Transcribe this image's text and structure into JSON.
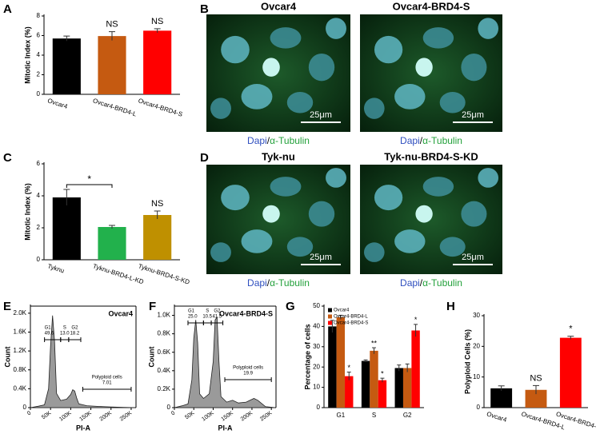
{
  "chart_data": [
    {
      "panel": "A",
      "type": "bar",
      "y_label": "Mitotic Index (%)",
      "categories": [
        "Ovcar4",
        "Ovcar4-BRD4-L",
        "Ovcar4-BRD4-S"
      ],
      "values": [
        5.7,
        5.95,
        6.5
      ],
      "errors": [
        0.25,
        0.45,
        0.2
      ],
      "colors": [
        "#000000",
        "#c55a11",
        "#ff0000"
      ],
      "bar_labels": [
        null,
        "NS",
        "NS"
      ],
      "ylim": [
        0,
        8
      ],
      "yticks": [
        0,
        2,
        4,
        6,
        8
      ]
    },
    {
      "panel": "C",
      "type": "bar",
      "y_label": "Mitotic Index (%)",
      "categories": [
        "Tyknu",
        "Tyknu-BRD4-L-KD",
        "Tyknu-BRD4-S-KD"
      ],
      "values": [
        3.9,
        2.05,
        2.8
      ],
      "errors": [
        0.5,
        0.1,
        0.25
      ],
      "colors": [
        "#000000",
        "#22b14c",
        "#bf9000"
      ],
      "bar_labels": [
        null,
        null,
        "NS"
      ],
      "bracket_label": "*",
      "ylim": [
        0,
        6
      ],
      "yticks": [
        0,
        2,
        4,
        6
      ]
    },
    {
      "panel": "E",
      "type": "area",
      "sample": "Ovcar4",
      "x_label": "PI-A",
      "y_label": "Count",
      "x": [
        0,
        20000,
        35000,
        45000,
        50000,
        55000,
        60000,
        65000,
        75000,
        90000,
        100000,
        105000,
        110000,
        115000,
        120000,
        140000,
        170000,
        200000,
        230000,
        260000
      ],
      "values": [
        0,
        30,
        60,
        400,
        1300,
        1950,
        1400,
        300,
        150,
        180,
        280,
        380,
        350,
        200,
        80,
        40,
        25,
        15,
        5,
        0
      ],
      "gates": [
        {
          "name": "G1",
          "percent": 49.6,
          "range": [
            35000,
            75000
          ]
        },
        {
          "name": "S",
          "percent": {
            "value": 13,
            "label": "13.0"
          },
          "range": [
            75000,
            95000
          ]
        },
        {
          "name": "G2",
          "percent": 18.2,
          "range": [
            95000,
            125000
          ]
        },
        {
          "name": "Polyploid cells",
          "percent": 7.01,
          "range": [
            130000,
            250000
          ]
        }
      ],
      "xlim": [
        0,
        262000
      ],
      "ylim": [
        0,
        2150
      ],
      "xticks": [
        0,
        {
          "value": 50000,
          "label": "50K"
        },
        {
          "value": 100000,
          "label": "100K"
        },
        {
          "value": 150000,
          "label": "150K"
        },
        {
          "value": 200000,
          "label": "200K"
        },
        {
          "value": 250000,
          "label": "250K"
        }
      ],
      "yticks": [
        0,
        {
          "value": 400,
          "label": "0.4K"
        },
        {
          "value": 800,
          "label": "0.8K"
        },
        {
          "value": 1200,
          "label": "1.2K"
        },
        {
          "value": 1600,
          "label": "1.6K"
        },
        {
          "value": 2000,
          "label": "2.0K"
        }
      ]
    },
    {
      "panel": "F",
      "type": "area",
      "sample": "Ovcar4-BRD4-S",
      "x_label": "PI-A",
      "y_label": "Count",
      "x": [
        0,
        20000,
        35000,
        45000,
        50000,
        55000,
        60000,
        65000,
        75000,
        90000,
        100000,
        105000,
        110000,
        115000,
        120000,
        135000,
        150000,
        165000,
        185000,
        205000,
        215000,
        235000,
        260000
      ],
      "values": [
        0,
        20,
        40,
        300,
        750,
        950,
        700,
        150,
        100,
        150,
        500,
        950,
        980,
        500,
        120,
        60,
        80,
        50,
        60,
        100,
        80,
        10,
        0
      ],
      "gates": [
        {
          "name": "G1",
          "percent": {
            "value": 25,
            "label": "25.0"
          },
          "range": [
            35000,
            75000
          ]
        },
        {
          "name": "S",
          "percent": 10.5,
          "range": [
            75000,
            95000
          ]
        },
        {
          "name": "G2",
          "percent": 41.5,
          "range": [
            95000,
            125000
          ]
        },
        {
          "name": "Polyploid cells",
          "percent": 19.9,
          "range": [
            130000,
            250000
          ]
        }
      ],
      "xlim": [
        0,
        262000
      ],
      "ylim": [
        0,
        1100
      ],
      "xticks": [
        0,
        {
          "value": 50000,
          "label": "50K"
        },
        {
          "value": 100000,
          "label": "100K"
        },
        {
          "value": 150000,
          "label": "150K"
        },
        {
          "value": 200000,
          "label": "200K"
        },
        {
          "value": 250000,
          "label": "250K"
        }
      ],
      "yticks": [
        0,
        {
          "value": 200,
          "label": "0.2K"
        },
        {
          "value": 400,
          "label": "0.4K"
        },
        {
          "value": 600,
          "label": "0.6K"
        },
        {
          "value": 800,
          "label": "0.8K"
        },
        {
          "value": 1000,
          "label": "1.0K"
        }
      ]
    },
    {
      "panel": "G",
      "type": "grouped_bar",
      "y_label": "Percentage of cells",
      "legend": "upper left",
      "categories": [
        "G1",
        "S",
        "G2"
      ],
      "series": [
        {
          "name": "Ovcar4",
          "color": "#000000",
          "values": [
            40,
            23,
            19.5
          ],
          "errors": [
            3,
            0.5,
            1.5
          ],
          "bar_labels": [
            null,
            null,
            null
          ]
        },
        {
          "name": "Ovcar4-BRD4-L",
          "color": "#c55a11",
          "values": [
            44.5,
            28,
            19.5
          ],
          "errors": [
            1,
            1.5,
            2
          ],
          "bar_labels": [
            null,
            "**",
            null
          ]
        },
        {
          "name": "Ovcar4-BRD4-S",
          "color": "#ff0000",
          "values": [
            15.5,
            13.5,
            38
          ],
          "errors": [
            2,
            1,
            3
          ],
          "bar_labels": [
            "*",
            "*",
            "*"
          ]
        }
      ],
      "ylim": [
        0,
        50
      ],
      "yticks": [
        0,
        10,
        20,
        30,
        40,
        50
      ]
    },
    {
      "panel": "H",
      "type": "bar",
      "y_label": "Polyploid Cells (%)",
      "categories": [
        "Ovcar4",
        "Ovcar4-BRD4-L",
        "Ovcar4-BRD4-S"
      ],
      "values": [
        6.3,
        5.8,
        22.8
      ],
      "errors": [
        0.8,
        1.4,
        0.5
      ],
      "colors": [
        "#000000",
        "#c55a11",
        "#ff0000"
      ],
      "bar_labels": [
        null,
        "NS",
        "*"
      ],
      "ylim": [
        0,
        30
      ],
      "yticks": [
        0,
        10,
        20,
        30
      ]
    }
  ],
  "image_panels": [
    {
      "panel": "B",
      "images": [
        {
          "title": "Ovcar4",
          "scale": "25μm",
          "caption": [
            "Dapi",
            "/",
            "α-Tubulin"
          ]
        },
        {
          "title": "Ovcar4-BRD4-S",
          "scale": "25μm",
          "caption": [
            "Dapi",
            "/",
            "α-Tubulin"
          ]
        }
      ]
    },
    {
      "panel": "D",
      "images": [
        {
          "title": "Tyk-nu",
          "scale": "25μm",
          "caption": [
            "Dapi",
            "/",
            "α-Tubulin"
          ]
        },
        {
          "title": "Tyk-nu-BRD4-S-KD",
          "scale": "25μm",
          "caption": [
            "Dapi",
            "/",
            "α-Tubulin"
          ]
        }
      ]
    }
  ]
}
